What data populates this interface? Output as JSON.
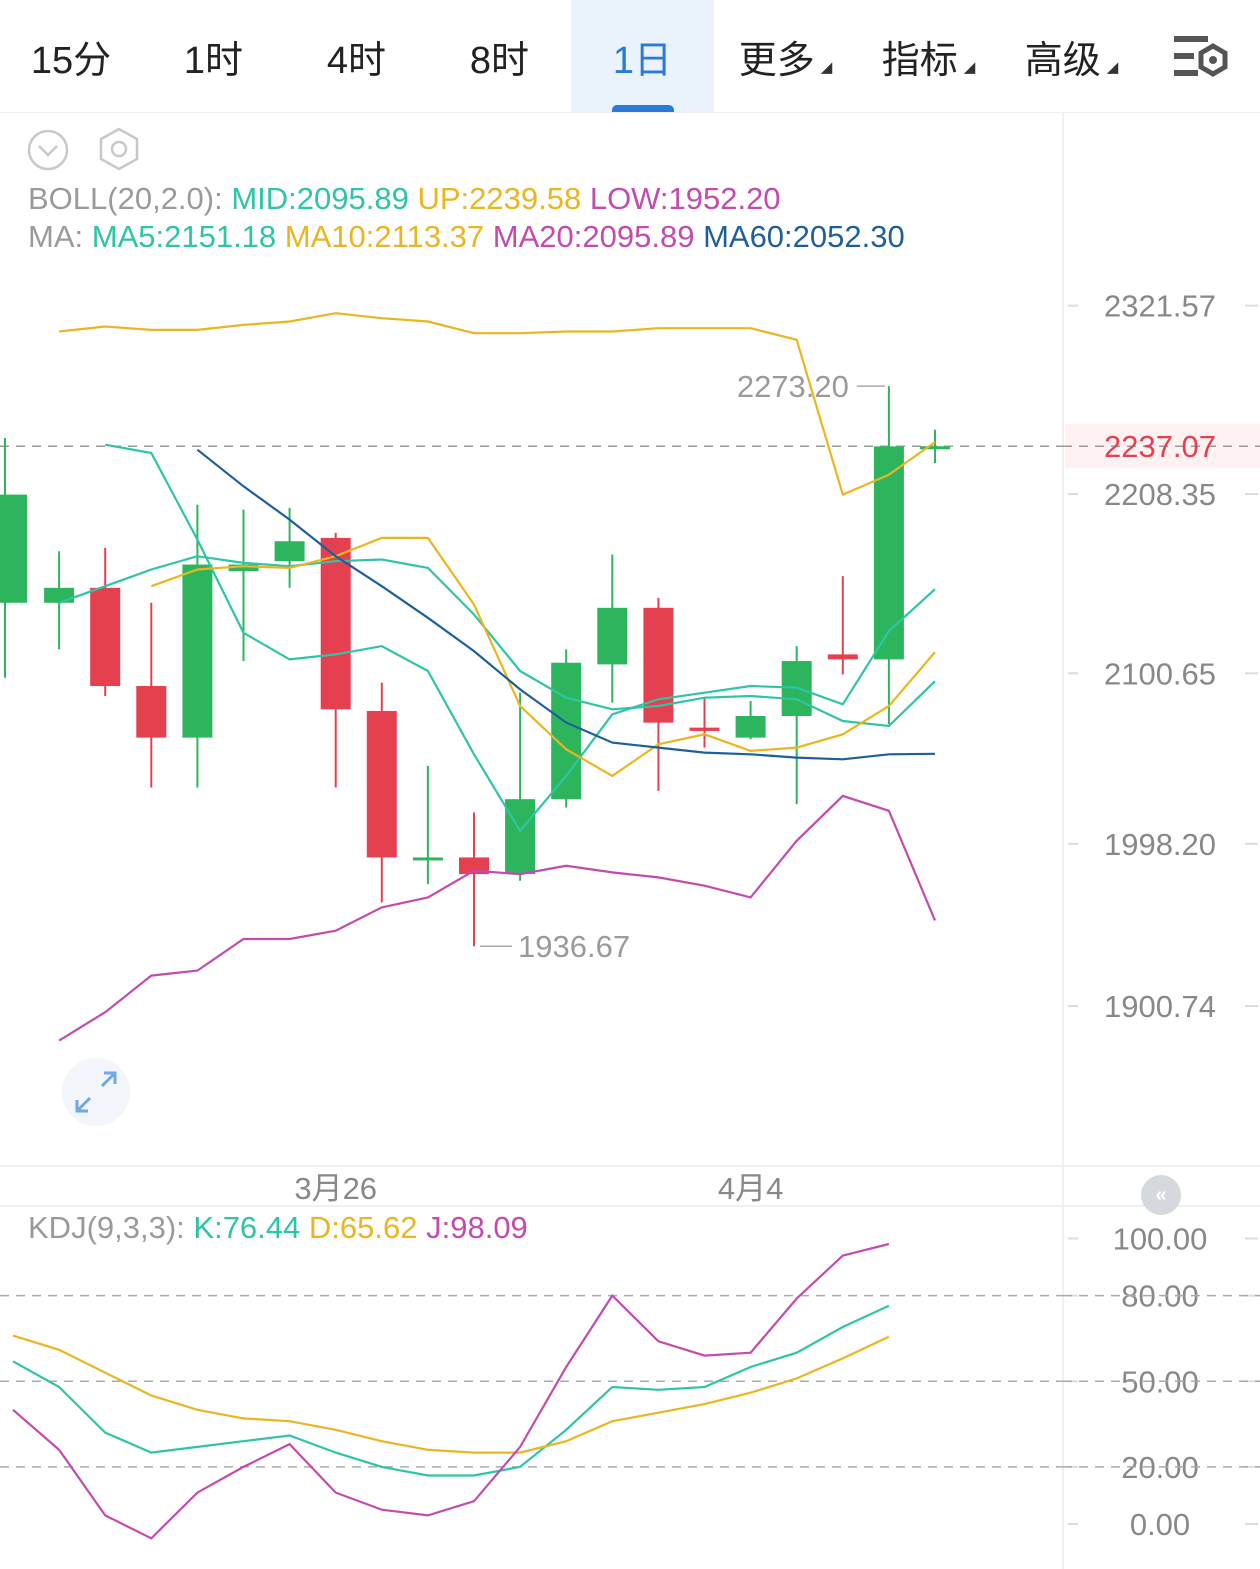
{
  "tabs": [
    {
      "label": "15分",
      "active": false
    },
    {
      "label": "1时",
      "active": false
    },
    {
      "label": "4时",
      "active": false
    },
    {
      "label": "8时",
      "active": false
    },
    {
      "label": "1日",
      "active": true
    },
    {
      "label": "更多",
      "active": false,
      "dropdown": true
    },
    {
      "label": "指标",
      "active": false,
      "dropdown": true
    },
    {
      "label": "高级",
      "active": false,
      "dropdown": true
    }
  ],
  "icons": {
    "settings": "chart-settings-icon",
    "collapse": "chevron-down-circle-icon",
    "indicator_settings": "hexagon-gear-icon",
    "expand": "expand-arrows-icon",
    "scroll_left": "scroll-to-start-icon"
  },
  "legend": {
    "boll": {
      "name": "BOLL(20,2.0):",
      "mid": "MID:2095.89",
      "up": "UP:2239.58",
      "low": "LOW:1952.20"
    },
    "ma": {
      "name": "MA:",
      "ma5": "MA5:2151.18",
      "ma10": "MA10:2113.37",
      "ma20": "MA20:2095.89",
      "ma60": "MA60:2052.30"
    },
    "kdj": {
      "name": "KDJ(9,3,3):",
      "k": "K:76.44",
      "d": "D:65.62",
      "j": "J:98.09"
    }
  },
  "colors": {
    "up": "#2db55d",
    "down": "#e5404f",
    "mid": "#2ec4a6",
    "upper": "#e9b521",
    "lower": "#c34bae",
    "ma60": "#1f5f99",
    "accent": "#2a7bd9",
    "last_price": "#e5404f"
  },
  "chart_data": [
    {
      "type": "candlestick",
      "interval": "1日",
      "last_price": 2237.07,
      "y_ticks": [
        2321.57,
        2208.35,
        2100.65,
        1998.2,
        1900.74
      ],
      "x_labels": [
        {
          "index": 7,
          "label": "3月26"
        },
        {
          "index": 16,
          "label": "4月4"
        }
      ],
      "annotations": {
        "high": "2273.20",
        "low": "1936.67"
      },
      "candles": [
        {
          "o": 2143,
          "h": 2242,
          "l": 2098,
          "c": 2208
        },
        {
          "o": 2143,
          "h": 2174,
          "l": 2115,
          "c": 2152
        },
        {
          "o": 2152,
          "h": 2176,
          "l": 2087,
          "c": 2093
        },
        {
          "o": 2093,
          "h": 2143,
          "l": 2032,
          "c": 2062
        },
        {
          "o": 2062,
          "h": 2202,
          "l": 2032,
          "c": 2166
        },
        {
          "o": 2162,
          "h": 2199,
          "l": 2108,
          "c": 2166
        },
        {
          "o": 2168,
          "h": 2200,
          "l": 2152,
          "c": 2180
        },
        {
          "o": 2182,
          "h": 2185,
          "l": 2032,
          "c": 2079
        },
        {
          "o": 2078,
          "h": 2095,
          "l": 1963,
          "c": 1990
        },
        {
          "o": 1990,
          "h": 2045,
          "l": 1974,
          "c": 1990
        },
        {
          "o": 1990,
          "h": 2017,
          "l": 1936.67,
          "c": 1980
        },
        {
          "o": 1980,
          "h": 2089,
          "l": 1976,
          "c": 2025
        },
        {
          "o": 2025,
          "h": 2115,
          "l": 2020,
          "c": 2107
        },
        {
          "o": 2106,
          "h": 2172,
          "l": 2083,
          "c": 2140
        },
        {
          "o": 2140,
          "h": 2146,
          "l": 2030,
          "c": 2071
        },
        {
          "o": 2068,
          "h": 2086,
          "l": 2056,
          "c": 2066
        },
        {
          "o": 2062,
          "h": 2084,
          "l": 2061,
          "c": 2075
        },
        {
          "o": 2075,
          "h": 2117,
          "l": 2022,
          "c": 2108
        },
        {
          "o": 2112,
          "h": 2159,
          "l": 2100,
          "c": 2109
        },
        {
          "o": 2109,
          "h": 2273.2,
          "l": 2070,
          "c": 2237
        },
        {
          "o": 2237,
          "h": 2247,
          "l": 2227,
          "c": 2237.07
        }
      ],
      "series": [
        {
          "name": "UP",
          "values": [
            2306,
            2309,
            2307,
            2307,
            2310,
            2312,
            2317,
            2314,
            2312,
            2305,
            2305,
            2306,
            2306,
            2308,
            2308,
            2308,
            2301,
            2208,
            2220,
            2239.58
          ]
        },
        {
          "name": "MID",
          "values": [
            2143,
            2153,
            2163,
            2171,
            2167,
            2165,
            2168,
            2169,
            2164,
            2136,
            2102,
            2086,
            2079,
            2081,
            2086,
            2087,
            2085,
            2072,
            2069,
            2095.89
          ]
        },
        {
          "name": "LOW",
          "values": [
            1880,
            1897,
            1919,
            1922,
            1941,
            1941,
            1946,
            1960,
            1966,
            1982,
            1980,
            1985,
            1981,
            1978,
            1973,
            1966,
            2000,
            2027,
            2018,
            1952.2
          ]
        },
        {
          "name": "MA5",
          "values": [
            2238,
            2233,
            2181,
            2125,
            2109,
            2112,
            2117,
            2102,
            2052,
            2006,
            2039,
            2076,
            2085,
            2089,
            2093,
            2092,
            2082,
            2126,
            2151.18
          ]
        },
        {
          "name": "MA10",
          "values": [
            2153,
            2163,
            2165,
            2164,
            2171,
            2182,
            2182,
            2142,
            2081,
            2055,
            2039,
            2058,
            2064,
            2054,
            2056,
            2064,
            2081,
            2113.37
          ]
        },
        {
          "name": "MA60",
          "values": [
            2235,
            2213,
            2193,
            2171,
            2153,
            2134,
            2114,
            2091,
            2071,
            2059,
            2056,
            2053,
            2052,
            2050,
            2049,
            2052,
            2052.3
          ]
        }
      ]
    },
    {
      "type": "line",
      "title": "KDJ(9,3,3)",
      "ylim": [
        0,
        100
      ],
      "y_ticks": [
        100.0,
        80.0,
        50.0,
        20.0,
        0.0
      ],
      "series": [
        {
          "name": "K",
          "values": [
            57,
            48,
            32,
            25,
            27,
            29,
            31,
            25,
            20,
            17,
            17,
            20,
            33,
            48,
            47,
            48,
            55,
            60,
            69,
            76.44
          ]
        },
        {
          "name": "D",
          "values": [
            66,
            61,
            53,
            45,
            40,
            37,
            36,
            33,
            29,
            26,
            25,
            25,
            29,
            36,
            39,
            42,
            46,
            51,
            58,
            65.62
          ]
        },
        {
          "name": "J",
          "values": [
            40,
            26,
            3,
            -5,
            11,
            20,
            28,
            11,
            5,
            3,
            8,
            27,
            55,
            80,
            64,
            59,
            60,
            79,
            94,
            98.09
          ]
        }
      ]
    }
  ]
}
